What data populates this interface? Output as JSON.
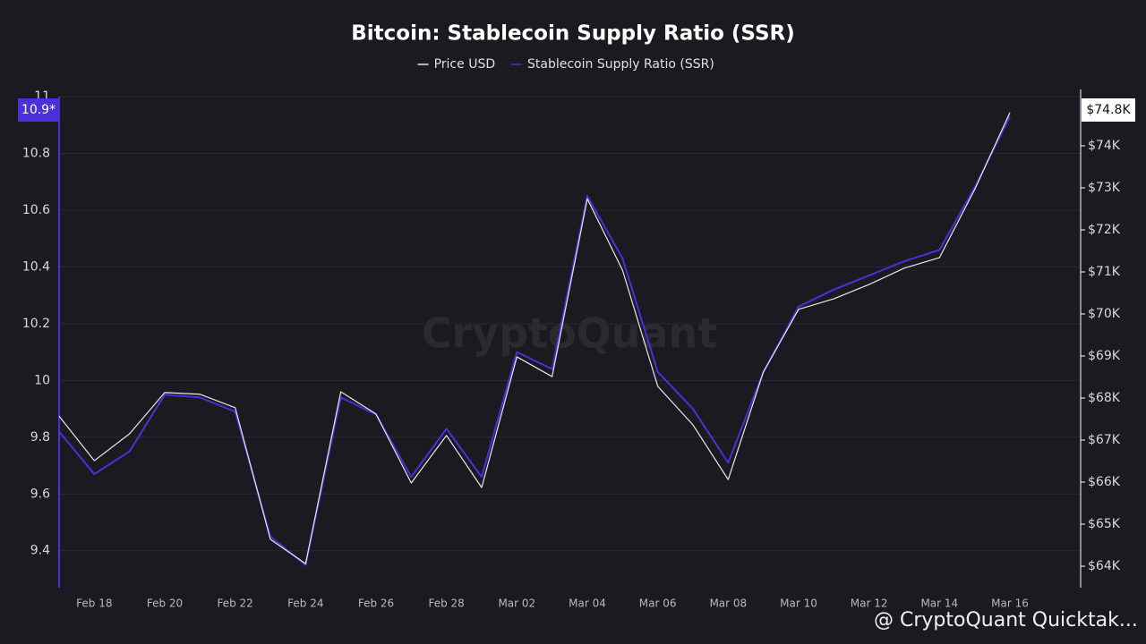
{
  "chart_data": {
    "type": "line",
    "title": "Bitcoin: Stablecoin Supply Ratio (SSR)",
    "watermark": "CryptoQuant",
    "footer": "@ CryptoQuant Quicktak...",
    "categories": [
      null,
      "Feb 18",
      null,
      "Feb 20",
      null,
      "Feb 22",
      null,
      "Feb 24",
      null,
      "Feb 26",
      null,
      "Feb 28",
      null,
      "Mar 02",
      null,
      "Mar 04",
      null,
      "Mar 06",
      null,
      "Mar 08",
      null,
      "Mar 10",
      null,
      "Mar 12",
      null,
      "Mar 14",
      null,
      "Mar 16"
    ],
    "series": [
      {
        "name": "Price USD",
        "color": "#e8e8ec",
        "axis": "y2",
        "last_value_label": "$74.8K",
        "values": [
          67570,
          66510,
          67150,
          68130,
          68090,
          67770,
          64640,
          64060,
          68150,
          67620,
          65980,
          67110,
          65870,
          68980,
          68510,
          72740,
          71040,
          68280,
          67360,
          66060,
          68620,
          70110,
          70360,
          70700,
          71090,
          71340,
          72960,
          74790
        ]
      },
      {
        "name": "Stablecoin Supply Ratio (SSR)",
        "color": "#4a30d8",
        "last_value_label": "10.9*",
        "values": [
          9.82,
          9.67,
          9.75,
          9.95,
          9.94,
          9.89,
          9.45,
          9.35,
          9.94,
          9.88,
          9.66,
          9.83,
          9.66,
          10.1,
          10.04,
          10.65,
          10.43,
          10.03,
          9.9,
          9.71,
          10.03,
          10.26,
          10.32,
          10.37,
          10.42,
          10.46,
          10.68,
          10.93
        ]
      }
    ],
    "ylim": [
      9.27,
      11.0
    ],
    "yticks": [
      9.4,
      9.6,
      9.8,
      10,
      10.2,
      10.4,
      10.6,
      10.8,
      11
    ],
    "y2lim": [
      63490,
      75170
    ],
    "y2ticks": [
      {
        "value": 64000,
        "label": "$64K"
      },
      {
        "value": 65000,
        "label": "$65K"
      },
      {
        "value": 66000,
        "label": "$66K"
      },
      {
        "value": 67000,
        "label": "$67K"
      },
      {
        "value": 68000,
        "label": "$68K"
      },
      {
        "value": 69000,
        "label": "$69K"
      },
      {
        "value": 70000,
        "label": "$70K"
      },
      {
        "value": 71000,
        "label": "$71K"
      },
      {
        "value": 72000,
        "label": "$72K"
      },
      {
        "value": 73000,
        "label": "$73K"
      },
      {
        "value": 74000,
        "label": "$74K"
      }
    ],
    "grid": true
  }
}
